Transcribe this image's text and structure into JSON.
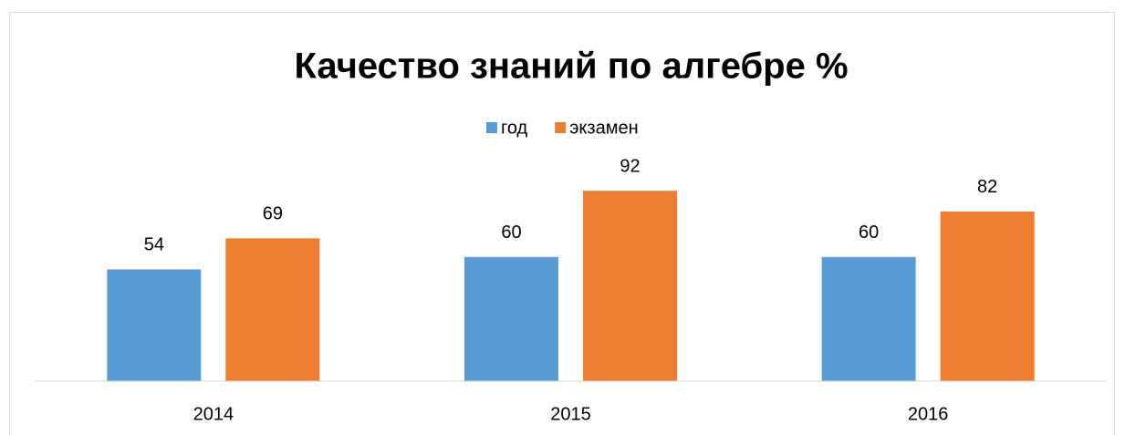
{
  "chart_data": {
    "type": "bar",
    "title": "Качество знаний по алгебре %",
    "categories": [
      "2014",
      "2015",
      "2016"
    ],
    "series": [
      {
        "name": "год",
        "color": "#5b9bd5",
        "values": [
          54,
          60,
          60
        ]
      },
      {
        "name": "экзамен",
        "color": "#ed7d31",
        "values": [
          69,
          92,
          82
        ]
      }
    ],
    "ylim": [
      0,
      100
    ],
    "legend": "top"
  }
}
